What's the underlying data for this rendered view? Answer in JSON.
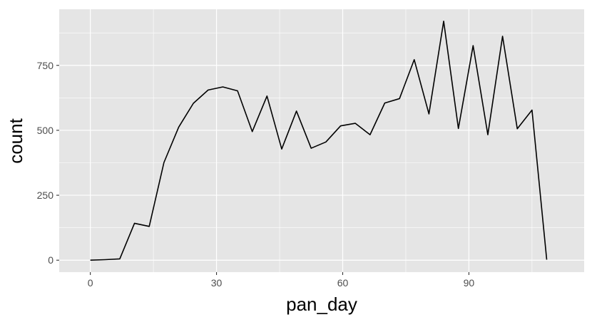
{
  "chart_data": {
    "type": "line",
    "title": "",
    "xlabel": "pan_day",
    "ylabel": "count",
    "xlim": [
      -7.4,
      117.4
    ],
    "ylim": [
      -46,
      966
    ],
    "x_ticks": [
      0,
      30,
      60,
      90
    ],
    "x_minor": [
      15,
      45,
      75,
      105
    ],
    "y_ticks": [
      0,
      250,
      500,
      750
    ],
    "y_minor": [
      125,
      375,
      625,
      875
    ],
    "grid": true,
    "legend": "none",
    "colors": {
      "panel": "#e5e5e5",
      "grid": "#ffffff",
      "line": "#000000",
      "tick": "#333333"
    },
    "series": [
      {
        "x": [
          0,
          3.5,
          7,
          10.5,
          14,
          17.5,
          21,
          24.5,
          28,
          31.5,
          35,
          38.5,
          42,
          45.5,
          49,
          52.5,
          56,
          59.5,
          63,
          66.5,
          70,
          73.5,
          77,
          80.5,
          84,
          87.5,
          91,
          94.5,
          98,
          101.5,
          105,
          108.5
        ],
        "values": [
          0,
          2,
          5,
          142,
          130,
          376,
          512,
          604,
          655,
          667,
          652,
          495,
          632,
          428,
          574,
          431,
          455,
          517,
          527,
          483,
          605,
          622,
          772,
          563,
          920,
          507,
          826,
          483,
          862,
          506,
          578,
          2
        ]
      }
    ]
  }
}
